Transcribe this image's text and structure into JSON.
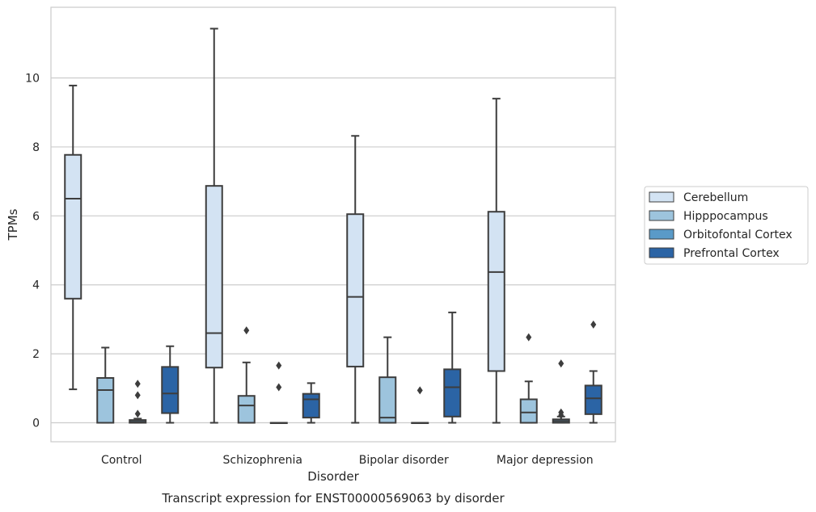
{
  "chart_data": {
    "type": "box",
    "title": "Transcript expression for ENST00000569063 by disorder",
    "xlabel": "Disorder",
    "ylabel": "TPMs",
    "ylim": [
      -0.55,
      12.05
    ],
    "yticks": [
      0,
      2,
      4,
      6,
      8,
      10
    ],
    "grid": "horizontal",
    "legend_position": "right",
    "categories": [
      "Control",
      "Schizophrenia",
      "Bipolar disorder",
      "Major depression"
    ],
    "series": [
      {
        "name": "Cerebellum",
        "color": "#d3e3f3",
        "boxes": [
          {
            "whislo": 0.97,
            "q1": 3.6,
            "med": 6.5,
            "q3": 7.77,
            "whishi": 9.78,
            "fliers": []
          },
          {
            "whislo": 0.0,
            "q1": 1.6,
            "med": 2.6,
            "q3": 6.87,
            "whishi": 11.43,
            "fliers": []
          },
          {
            "whislo": 0.0,
            "q1": 1.63,
            "med": 3.65,
            "q3": 6.05,
            "whishi": 8.32,
            "fliers": []
          },
          {
            "whislo": 0.0,
            "q1": 1.5,
            "med": 4.37,
            "q3": 6.12,
            "whishi": 9.4,
            "fliers": []
          }
        ]
      },
      {
        "name": "Hipppocampus",
        "color": "#9dc4dd",
        "boxes": [
          {
            "whislo": 0.0,
            "q1": 0.0,
            "med": 0.95,
            "q3": 1.3,
            "whishi": 2.18,
            "fliers": []
          },
          {
            "whislo": 0.0,
            "q1": 0.0,
            "med": 0.5,
            "q3": 0.78,
            "whishi": 1.75,
            "fliers": [
              2.68
            ]
          },
          {
            "whislo": 0.0,
            "q1": 0.0,
            "med": 0.15,
            "q3": 1.32,
            "whishi": 2.48,
            "fliers": []
          },
          {
            "whislo": 0.0,
            "q1": 0.0,
            "med": 0.3,
            "q3": 0.68,
            "whishi": 1.2,
            "fliers": [
              2.48
            ]
          }
        ]
      },
      {
        "name": "Orbitofontal Cortex",
        "color": "#5a9ac8",
        "boxes": [
          {
            "whislo": 0.0,
            "q1": 0.0,
            "med": 0.03,
            "q3": 0.08,
            "whishi": 0.12,
            "fliers": [
              0.26,
              0.8,
              1.13
            ]
          },
          {
            "whislo": 0.0,
            "q1": 0.0,
            "med": 0.0,
            "q3": 0.0,
            "whishi": 0.0,
            "fliers": [
              1.03,
              1.66
            ]
          },
          {
            "whislo": 0.0,
            "q1": 0.0,
            "med": 0.0,
            "q3": 0.0,
            "whishi": 0.0,
            "fliers": [
              0.94
            ]
          },
          {
            "whislo": 0.0,
            "q1": 0.0,
            "med": 0.05,
            "q3": 0.1,
            "whishi": 0.18,
            "fliers": [
              0.22,
              0.3,
              1.72
            ]
          }
        ]
      },
      {
        "name": "Prefrontal Cortex",
        "color": "#2b64a5",
        "boxes": [
          {
            "whislo": 0.0,
            "q1": 0.28,
            "med": 0.85,
            "q3": 1.62,
            "whishi": 2.22,
            "fliers": []
          },
          {
            "whislo": 0.0,
            "q1": 0.15,
            "med": 0.68,
            "q3": 0.84,
            "whishi": 1.15,
            "fliers": []
          },
          {
            "whislo": 0.0,
            "q1": 0.18,
            "med": 1.03,
            "q3": 1.55,
            "whishi": 3.2,
            "fliers": []
          },
          {
            "whislo": 0.0,
            "q1": 0.25,
            "med": 0.71,
            "q3": 1.08,
            "whishi": 1.5,
            "fliers": [
              2.85
            ]
          }
        ]
      }
    ]
  }
}
